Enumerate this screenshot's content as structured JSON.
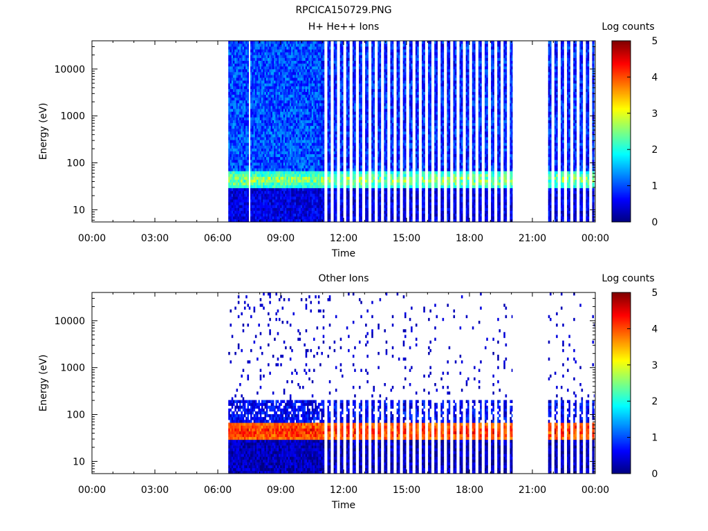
{
  "figure_title": "RPCICA150729.PNG",
  "colors": {
    "background": "#ffffff",
    "frame": "#000000",
    "colormap": [
      "#00007f",
      "#0000ff",
      "#007fff",
      "#00ffff",
      "#7fff7f",
      "#ffff00",
      "#ff7f00",
      "#ff0000",
      "#7f0000"
    ]
  },
  "chart_data": [
    {
      "type": "heatmap",
      "title": "H+ He++ Ions",
      "xlabel": "Time",
      "ylabel": "Energy (eV)",
      "x_ticks": [
        "00:00",
        "03:00",
        "06:00",
        "09:00",
        "12:00",
        "15:00",
        "18:00",
        "21:00",
        "00:00"
      ],
      "xlim_hours": [
        0,
        24
      ],
      "y_scale": "log",
      "ylim": [
        5.5,
        40000
      ],
      "y_ticks": [
        10,
        100,
        1000,
        10000
      ],
      "y_tick_labels": [
        "10",
        "100",
        "1000",
        "10000"
      ],
      "colorbar": {
        "label": "Log counts",
        "range": [
          0,
          5
        ],
        "ticks": [
          "0",
          "1",
          "2",
          "3",
          "4",
          "5"
        ]
      },
      "data_intervals_hours": [
        [
          6.5,
          20.05
        ],
        [
          21.6,
          23.95
        ]
      ],
      "continuous_until_hour": 10.9,
      "data_gaps_hours": [
        [
          7.45,
          7.55
        ],
        [
          21.55,
          21.6
        ]
      ],
      "sweep_period_hours": 0.3,
      "band": {
        "energy_range_eV": [
          30,
          65
        ],
        "log_counts": 2.0,
        "peak_log_counts": 3.2
      },
      "low_energy_log_counts": 0.5,
      "high_energy_log_counts": 0.8
    },
    {
      "type": "heatmap",
      "title": "Other Ions",
      "xlabel": "Time",
      "ylabel": "Energy (eV)",
      "x_ticks": [
        "00:00",
        "03:00",
        "06:00",
        "09:00",
        "12:00",
        "15:00",
        "18:00",
        "21:00",
        "00:00"
      ],
      "xlim_hours": [
        0,
        24
      ],
      "y_scale": "log",
      "ylim": [
        5.5,
        40000
      ],
      "y_ticks": [
        10,
        100,
        1000,
        10000
      ],
      "y_tick_labels": [
        "10",
        "100",
        "1000",
        "10000"
      ],
      "colorbar": {
        "label": "Log counts",
        "range": [
          0,
          5
        ],
        "ticks": [
          "0",
          "1",
          "2",
          "3",
          "4",
          "5"
        ]
      },
      "data_intervals_hours": [
        [
          6.5,
          20.05
        ],
        [
          21.6,
          23.95
        ]
      ],
      "continuous_until_hour": 10.9,
      "data_gaps_hours": [
        [
          21.55,
          21.6
        ]
      ],
      "sweep_period_hours": 0.3,
      "band": {
        "energy_range_eV": [
          28,
          70
        ],
        "log_counts": 3.8,
        "peak_log_counts": 4.6
      },
      "mid_energy_range_eV": [
        70,
        200
      ],
      "mid_energy_log_counts": 0.6,
      "low_energy_log_counts": 0.3,
      "sparse_high_energy": true
    }
  ]
}
